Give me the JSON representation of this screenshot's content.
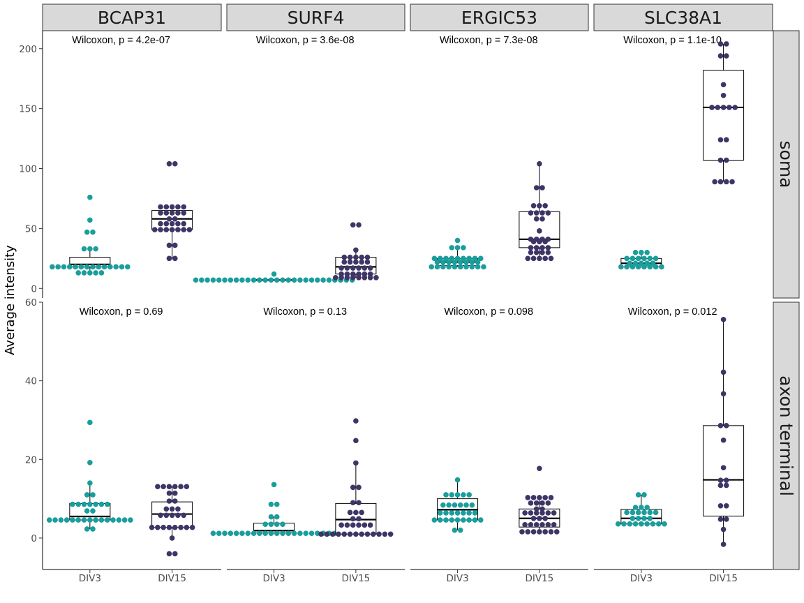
{
  "chart_data": {
    "type": "box",
    "ylabel": "Average intensity",
    "x_categories": [
      "DIV3",
      "DIV15"
    ],
    "columns": [
      "BCAP31",
      "SURF4",
      "ERGIC53",
      "SLC38A1"
    ],
    "rows": [
      {
        "name": "soma",
        "ylim": [
          -8,
          215
        ],
        "yticks": [
          0,
          50,
          100,
          150,
          200
        ]
      },
      {
        "name": "axon terminal",
        "ylim": [
          -8,
          60
        ],
        "yticks": [
          0,
          20,
          40,
          60
        ]
      }
    ],
    "colors": {
      "DIV3": "#1a9e9c",
      "DIV15": "#3e3566"
    },
    "facets": [
      {
        "row": "soma",
        "column": "BCAP31",
        "annotation": "Wilcoxon, p = 4.2e-07",
        "groups": [
          {
            "x": "DIV3",
            "box": {
              "min": 13,
              "q1": 18,
              "median": 20,
              "q3": 26,
              "max": 33
            },
            "points": [
              13,
              13,
              13,
              13,
              13,
              18,
              18,
              18,
              18,
              18,
              18,
              18,
              18,
              18,
              18,
              18,
              18,
              18,
              18,
              33,
              33,
              33,
              47,
              47,
              57,
              76
            ]
          },
          {
            "x": "DIV15",
            "box": {
              "min": 25,
              "q1": 49,
              "median": 58,
              "q3": 65,
              "max": 68
            },
            "points": [
              25,
              25,
              36,
              36,
              49,
              49,
              49,
              49,
              49,
              49,
              49,
              54,
              54,
              54,
              54,
              54,
              58,
              58,
              63,
              63,
              63,
              63,
              63,
              68,
              68,
              68,
              68,
              68,
              104,
              104
            ]
          }
        ]
      },
      {
        "row": "soma",
        "column": "SURF4",
        "annotation": "Wilcoxon, p = 3.6e-08",
        "groups": [
          {
            "x": "DIV3",
            "box": {
              "min": 7,
              "q1": 7,
              "median": 7,
              "q3": 7,
              "max": 7
            },
            "points": [
              7,
              7,
              7,
              7,
              7,
              7,
              7,
              7,
              7,
              7,
              7,
              7,
              7,
              7,
              7,
              7,
              7,
              7,
              7,
              7,
              7,
              7,
              7,
              7,
              7,
              7,
              7,
              7,
              12
            ]
          },
          {
            "x": "DIV15",
            "box": {
              "min": 9,
              "q1": 12,
              "median": 18,
              "q3": 26,
              "max": 32
            },
            "points": [
              9,
              9,
              9,
              9,
              9,
              9,
              9,
              9,
              12,
              12,
              12,
              12,
              12,
              12,
              17,
              17,
              17,
              17,
              17,
              17,
              22,
              22,
              22,
              22,
              22,
              26,
              26,
              26,
              26,
              26,
              32,
              53,
              53
            ]
          }
        ]
      },
      {
        "row": "soma",
        "column": "ERGIC53",
        "annotation": "Wilcoxon, p = 7.3e-08",
        "groups": [
          {
            "x": "DIV3",
            "box": {
              "min": 18,
              "q1": 19,
              "median": 22,
              "q3": 25,
              "max": 34
            },
            "points": [
              18,
              18,
              18,
              18,
              18,
              18,
              18,
              18,
              18,
              18,
              22,
              22,
              22,
              22,
              22,
              22,
              22,
              22,
              25,
              25,
              25,
              25,
              25,
              25,
              25,
              25,
              25,
              34,
              34,
              34,
              40
            ]
          },
          {
            "x": "DIV15",
            "box": {
              "min": 25,
              "q1": 34,
              "median": 41,
              "q3": 64,
              "max": 104
            },
            "points": [
              25,
              25,
              25,
              25,
              25,
              30,
              30,
              30,
              30,
              34,
              34,
              34,
              34,
              39,
              39,
              39,
              41,
              41,
              41,
              41,
              48,
              58,
              58,
              63,
              63,
              63,
              63,
              69,
              69,
              69,
              84,
              84,
              104
            ]
          }
        ]
      },
      {
        "row": "soma",
        "column": "SLC38A1",
        "annotation": "Wilcoxon, p = 1.1e-10",
        "groups": [
          {
            "x": "DIV3",
            "box": {
              "min": 18,
              "q1": 18,
              "median": 21,
              "q3": 25,
              "max": 30
            },
            "points": [
              18,
              18,
              18,
              18,
              18,
              18,
              18,
              18,
              21,
              21,
              21,
              21,
              21,
              25,
              25,
              25,
              25,
              25,
              25,
              30,
              30,
              30
            ]
          },
          {
            "x": "DIV15",
            "box": {
              "min": 89,
              "q1": 107,
              "median": 151,
              "q3": 182,
              "max": 204
            },
            "points": [
              89,
              89,
              89,
              89,
              107,
              107,
              124,
              124,
              151,
              151,
              151,
              151,
              151,
              161,
              170,
              194,
              194,
              204,
              204
            ]
          }
        ]
      },
      {
        "row": "axon terminal",
        "column": "BCAP31",
        "annotation": "Wilcoxon, p = 0.69",
        "groups": [
          {
            "x": "DIV3",
            "box": {
              "min": 2.3,
              "q1": 4.6,
              "median": 5.5,
              "q3": 8.8,
              "max": 14
            },
            "points": [
              2.3,
              2.3,
              4.6,
              4.6,
              4.6,
              4.6,
              4.6,
              4.6,
              4.6,
              4.6,
              4.6,
              4.6,
              4.6,
              4.6,
              4.6,
              4.6,
              4.6,
              6.9,
              6.9,
              8.6,
              8.6,
              8.6,
              8.6,
              8.6,
              8.6,
              8.6,
              11,
              11,
              14,
              19.2,
              29.4
            ]
          },
          {
            "x": "DIV15",
            "box": {
              "min": 0,
              "q1": 2.7,
              "median": 6.1,
              "q3": 9.2,
              "max": 13.1
            },
            "points": [
              -4,
              -4,
              0,
              2.7,
              2.7,
              2.7,
              2.7,
              2.7,
              2.7,
              2.7,
              2.7,
              5.8,
              5.8,
              5.8,
              5.8,
              5.8,
              7.4,
              7.4,
              7.4,
              9.4,
              9.4,
              11.4,
              11.4,
              13.1,
              13.1,
              13.1,
              13.1,
              13.1,
              13.1
            ]
          }
        ]
      },
      {
        "row": "axon terminal",
        "column": "SURF4",
        "annotation": "Wilcoxon, p = 0.13",
        "groups": [
          {
            "x": "DIV3",
            "box": {
              "min": 1.2,
              "q1": 1.3,
              "median": 1.9,
              "q3": 3.8,
              "max": 5.4
            },
            "points": [
              1.2,
              1.2,
              1.2,
              1.2,
              1.2,
              1.2,
              1.2,
              1.2,
              1.2,
              1.2,
              1.2,
              1.2,
              1.2,
              1.2,
              1.2,
              1.2,
              1.2,
              1.2,
              1.2,
              1.2,
              1.2,
              1.2,
              3.5,
              3.5,
              3.5,
              3.5,
              5.4,
              5.4,
              8.6,
              8.6,
              13.6
            ]
          },
          {
            "x": "DIV15",
            "box": {
              "min": 1,
              "q1": 1,
              "median": 4.7,
              "q3": 8.8,
              "max": 19.1
            },
            "points": [
              1,
              1,
              1,
              1,
              1,
              1,
              1,
              1,
              1,
              1,
              1,
              1,
              1,
              3.3,
              3.3,
              3.3,
              3.3,
              3.3,
              3.3,
              4.9,
              4.9,
              6.5,
              6.5,
              6.5,
              9,
              9,
              12.9,
              12.9,
              19.1,
              24.8,
              29.8
            ]
          }
        ]
      },
      {
        "row": "axon terminal",
        "column": "ERGIC53",
        "annotation": "Wilcoxon, p = 0.098",
        "groups": [
          {
            "x": "DIV3",
            "box": {
              "min": 2,
              "q1": 4.6,
              "median": 7.2,
              "q3": 10,
              "max": 14.8
            },
            "points": [
              2,
              2,
              4.6,
              4.6,
              4.6,
              4.6,
              4.6,
              4.6,
              4.6,
              4.6,
              4.6,
              6.4,
              6.4,
              6.4,
              6.4,
              6.4,
              6.4,
              6.4,
              8.4,
              8.4,
              8.4,
              8.4,
              8.4,
              8.4,
              11,
              11,
              11,
              11,
              11,
              14.8
            ]
          },
          {
            "x": "DIV15",
            "box": {
              "min": 1.6,
              "q1": 2.8,
              "median": 5,
              "q3": 7.4,
              "max": 10.3
            },
            "points": [
              1.6,
              1.6,
              1.6,
              1.6,
              1.6,
              1.6,
              1.6,
              3.4,
              3.4,
              3.4,
              3.4,
              3.4,
              3.4,
              5,
              5,
              5,
              6.4,
              6.4,
              6.4,
              6.4,
              6.4,
              6.4,
              7.4,
              7.4,
              8.9,
              8.9,
              8.9,
              8.9,
              10.3,
              10.3,
              10.3,
              10.3,
              10.3,
              17.7
            ]
          }
        ]
      },
      {
        "row": "axon terminal",
        "column": "SLC38A1",
        "annotation": "Wilcoxon, p = 0.012",
        "groups": [
          {
            "x": "DIV3",
            "box": {
              "min": 3.6,
              "q1": 3.6,
              "median": 5,
              "q3": 7.3,
              "max": 11
            },
            "points": [
              3.6,
              3.6,
              3.6,
              3.6,
              3.6,
              3.6,
              3.6,
              3.6,
              3.6,
              5,
              5,
              5,
              5,
              6.5,
              6.5,
              6.5,
              6.5,
              6.5,
              6.5,
              7.8,
              7.8,
              7.8,
              11,
              11
            ]
          },
          {
            "x": "DIV15",
            "box": {
              "min": -1.6,
              "q1": 5.6,
              "median": 14.8,
              "q3": 28.6,
              "max": 55.6
            },
            "points": [
              -1.6,
              2.2,
              4.8,
              4.8,
              8.2,
              8.2,
              13.4,
              13.4,
              14.7,
              14.7,
              17.9,
              24.9,
              28.6,
              28.6,
              36.7,
              42.2,
              55.6
            ]
          }
        ]
      }
    ]
  }
}
